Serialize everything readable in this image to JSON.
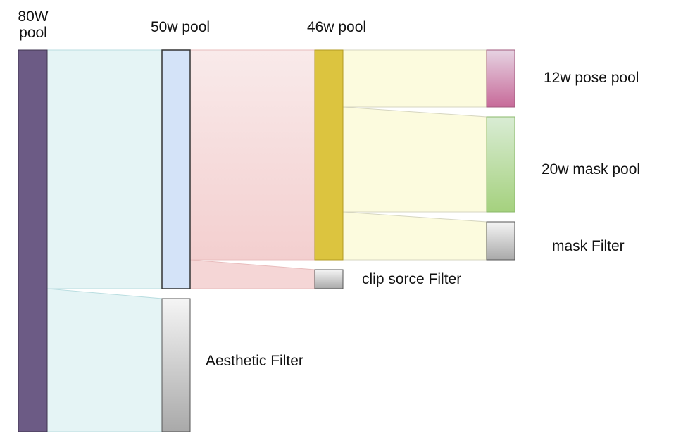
{
  "labels": {
    "pool_80w_line1": "80W",
    "pool_80w_line2": "pool",
    "pool_50w": "50w pool",
    "pool_46w": "46w pool",
    "pose_pool": "12w pose pool",
    "mask_pool": "20w mask pool",
    "mask_filter": "mask Filter",
    "clip_filter": "clip sorce Filter",
    "aesthetic_filter": "Aesthetic Filter"
  },
  "colors": {
    "pool_80w": "#6c5b85",
    "pool_50w": "#d4e3f8",
    "pool_46w": "#dcc43f",
    "flow_80_to_50": "#e5f4f5",
    "flow_50_to_46": "#f5d3d3",
    "flow_46_to_out": "#fcfbde",
    "pose_top": "#e6d3e2",
    "pose_bottom": "#c76a99",
    "mask_top": "#d9ecd4",
    "mask_bottom": "#a5d17e",
    "filter_top": "#f5f5f5",
    "filter_bottom": "#a9a9a9"
  }
}
